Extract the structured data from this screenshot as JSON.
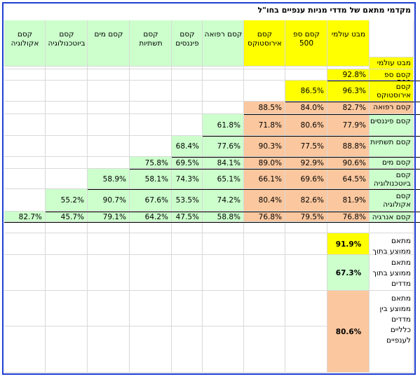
{
  "title": "מקדמי מתאם של מדדי מניות ענפיים בחו\"ל",
  "colors": {
    "yellow": "#ffff00",
    "green": "#ccffcc",
    "orange": "#fbc79e",
    "grid": "#d9d9d9",
    "frame": "#1f3fd1"
  },
  "columns": [
    {
      "label": "מבט עולמי",
      "color": "yellow"
    },
    {
      "label": "קסם ספ 500",
      "color": "yellow"
    },
    {
      "label": "קסם אירוסטוקס",
      "color": "yellow"
    },
    {
      "label": "קסם רפואה",
      "color": "green"
    },
    {
      "label": "קסם פיננסים",
      "color": "green"
    },
    {
      "label": "קסם תשתיות",
      "color": "green"
    },
    {
      "label": "קסם מים",
      "color": "green"
    },
    {
      "label": "קסם ביוטכנולוגיה",
      "color": "green"
    },
    {
      "label": "קסם אקולוגיה",
      "color": "green"
    }
  ],
  "rows": [
    {
      "label": "מבט עולמי",
      "color": "yellow",
      "values": []
    },
    {
      "label": "קסם ספ 500",
      "color": "yellow",
      "values": [
        "92.8%"
      ]
    },
    {
      "label": "קסם אירוסטוקס",
      "color": "yellow",
      "values": [
        "96.3%",
        "86.5%"
      ]
    },
    {
      "label": "קסם רפואה",
      "color": "orange",
      "values": [
        "82.7%",
        "84.0%",
        "88.5%"
      ]
    },
    {
      "label": "קסם פיננסים",
      "color": "green",
      "values": [
        "77.9%",
        "80.6%",
        "71.8%",
        "61.8%"
      ]
    },
    {
      "label": "קסם תשתיות",
      "color": "green",
      "values": [
        "88.8%",
        "77.5%",
        "90.3%",
        "77.6%",
        "68.4%"
      ]
    },
    {
      "label": "קסם מים",
      "color": "green",
      "values": [
        "90.6%",
        "92.9%",
        "89.0%",
        "84.1%",
        "69.5%",
        "75.8%"
      ]
    },
    {
      "label": "קסם ביוטכנולוגיה",
      "color": "green",
      "values": [
        "64.5%",
        "69.6%",
        "66.1%",
        "65.1%",
        "74.3%",
        "58.1%",
        "58.9%"
      ]
    },
    {
      "label": "קסם אקולוגיה",
      "color": "green",
      "values": [
        "81.9%",
        "82.6%",
        "80.4%",
        "74.2%",
        "53.5%",
        "67.6%",
        "90.7%",
        "55.2%"
      ]
    },
    {
      "label": "קסם אנרגיה",
      "color": "green",
      "values": [
        "76.8%",
        "79.5%",
        "76.8%",
        "58.8%",
        "47.5%",
        "64.2%",
        "79.1%",
        "45.7%",
        "82.7%"
      ]
    }
  ],
  "summary": [
    {
      "label": "מתאם ממוצע בתוך מדדים כלליים",
      "value": "91.9%",
      "color": "yellow"
    },
    {
      "label": "מתאם ממוצע בתוך מדדים ענפיים",
      "value": "67.3%",
      "color": "green"
    },
    {
      "label": "מתאם ממוצע בין מדדים כלליים לענפיים",
      "value": "80.6%",
      "color": "orange"
    }
  ]
}
